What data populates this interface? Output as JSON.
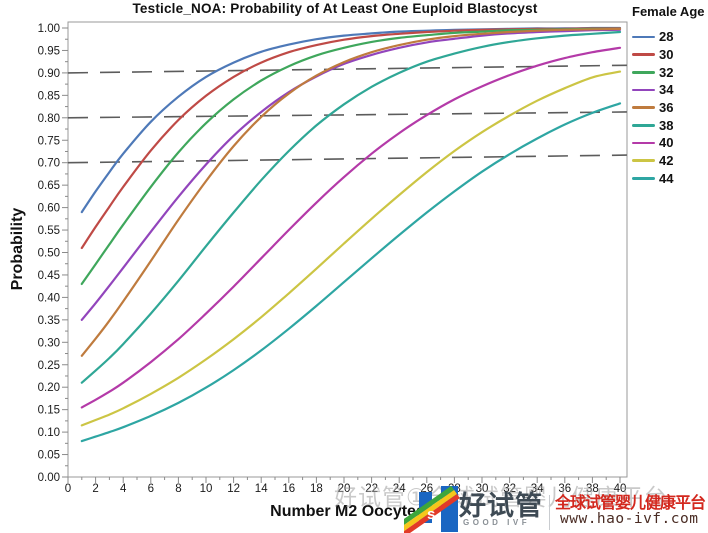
{
  "chart_data": {
    "type": "line",
    "title": "Testicle_NOA: Probability of At Least One Euploid Blastocyst",
    "xlabel": "Number M2 Oocytes",
    "ylabel": "Probability",
    "legend_title": "Female Age",
    "legend_position": "right",
    "grid": false,
    "xlim": [
      0,
      40.5
    ],
    "ylim": [
      0,
      1.015
    ],
    "x_ticks": [
      0,
      2,
      4,
      6,
      8,
      10,
      12,
      14,
      16,
      18,
      20,
      22,
      24,
      26,
      28,
      30,
      32,
      34,
      36,
      38,
      40
    ],
    "x_minor_tick_step": 1,
    "y_ticks": [
      0,
      0.05,
      0.1,
      0.15,
      0.2,
      0.25,
      0.3,
      0.35,
      0.4,
      0.45,
      0.5,
      0.55,
      0.6,
      0.65,
      0.7,
      0.75,
      0.8,
      0.85,
      0.9,
      0.95,
      1.0
    ],
    "y_minor_tick_step": 0.025,
    "x": [
      1,
      2,
      3,
      4,
      6,
      8,
      10,
      12,
      14,
      16,
      18,
      20,
      22,
      24,
      26,
      28,
      30,
      32,
      34,
      36,
      38,
      40
    ],
    "series": [
      {
        "name": "28",
        "color": "#4E79B8",
        "values": [
          0.59,
          0.636,
          0.679,
          0.72,
          0.791,
          0.847,
          0.891,
          0.923,
          0.947,
          0.963,
          0.975,
          0.983,
          0.988,
          0.992,
          0.994,
          0.996,
          0.997,
          0.998,
          0.999,
          0.999,
          1.0,
          1.0
        ]
      },
      {
        "name": "30",
        "color": "#BF4A46",
        "values": [
          0.51,
          0.557,
          0.602,
          0.646,
          0.727,
          0.795,
          0.849,
          0.891,
          0.923,
          0.946,
          0.962,
          0.974,
          0.982,
          0.987,
          0.991,
          0.994,
          0.996,
          0.997,
          0.998,
          0.998,
          0.999,
          0.999
        ]
      },
      {
        "name": "32",
        "color": "#3FA75C",
        "values": [
          0.43,
          0.474,
          0.518,
          0.562,
          0.646,
          0.723,
          0.788,
          0.841,
          0.883,
          0.915,
          0.939,
          0.956,
          0.969,
          0.978,
          0.984,
          0.989,
          0.992,
          0.995,
          0.996,
          0.997,
          0.998,
          0.998
        ]
      },
      {
        "name": "34",
        "color": "#9245BC",
        "values": [
          0.35,
          0.387,
          0.426,
          0.466,
          0.546,
          0.624,
          0.696,
          0.76,
          0.813,
          0.857,
          0.892,
          0.92,
          0.94,
          0.956,
          0.968,
          0.976,
          0.983,
          0.988,
          0.991,
          0.993,
          0.995,
          0.996
        ]
      },
      {
        "name": "36",
        "color": "#BF7B3E",
        "values": [
          0.27,
          0.308,
          0.348,
          0.391,
          0.481,
          0.573,
          0.659,
          0.737,
          0.802,
          0.854,
          0.894,
          0.924,
          0.946,
          0.962,
          0.974,
          0.982,
          0.987,
          0.991,
          0.994,
          0.996,
          0.997,
          0.998
        ]
      },
      {
        "name": "38",
        "color": "#2FA796",
        "values": [
          0.21,
          0.237,
          0.265,
          0.296,
          0.364,
          0.437,
          0.514,
          0.589,
          0.661,
          0.726,
          0.783,
          0.83,
          0.869,
          0.9,
          0.925,
          0.943,
          0.958,
          0.969,
          0.977,
          0.983,
          0.987,
          0.991
        ]
      },
      {
        "name": "40",
        "color": "#B43AA8",
        "values": [
          0.155,
          0.172,
          0.19,
          0.21,
          0.256,
          0.307,
          0.364,
          0.424,
          0.487,
          0.55,
          0.611,
          0.668,
          0.72,
          0.766,
          0.806,
          0.841,
          0.87,
          0.895,
          0.916,
          0.933,
          0.946,
          0.956
        ]
      },
      {
        "name": "42",
        "color": "#CCC544",
        "values": [
          0.115,
          0.127,
          0.139,
          0.153,
          0.185,
          0.221,
          0.262,
          0.307,
          0.356,
          0.409,
          0.464,
          0.52,
          0.575,
          0.628,
          0.679,
          0.726,
          0.768,
          0.805,
          0.838,
          0.866,
          0.89,
          0.903
        ]
      },
      {
        "name": "44",
        "color": "#2EA6A3",
        "values": [
          0.08,
          0.09,
          0.1,
          0.111,
          0.136,
          0.165,
          0.199,
          0.238,
          0.282,
          0.33,
          0.381,
          0.434,
          0.487,
          0.539,
          0.589,
          0.636,
          0.68,
          0.719,
          0.754,
          0.785,
          0.811,
          0.832
        ]
      }
    ],
    "reference_lines": [
      {
        "style": "dashed",
        "color": "#5c5c5c",
        "x_start": 0,
        "y_start": 0.9,
        "x_end": 40.5,
        "y_end": 0.917
      },
      {
        "style": "dashed",
        "color": "#5c5c5c",
        "x_start": 0,
        "y_start": 0.8,
        "x_end": 40.5,
        "y_end": 0.813
      },
      {
        "style": "dashed",
        "color": "#5c5c5c",
        "x_start": 0,
        "y_start": 0.7,
        "x_end": 40.5,
        "y_end": 0.717
      }
    ]
  },
  "watermark": {
    "faint_text": "好试管①全球试管婴儿健康平台",
    "brand": "好试管",
    "brand_sub": "GOOD IVF",
    "tagline": "全球试管婴儿健康平台",
    "url": "www.hao-ivf.com",
    "overlay_letter": "s",
    "logo_colors": {
      "blue": "#1A66C2",
      "green": "#3DA63C",
      "yellow": "#F5C71B",
      "red": "#E23A28"
    }
  }
}
